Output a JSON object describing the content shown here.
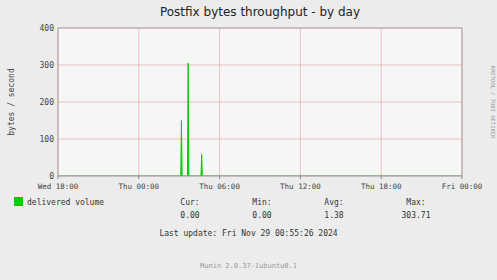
{
  "chart_data": {
    "type": "area",
    "title": "Postfix bytes throughput - by day",
    "ylabel": "bytes / second",
    "ylim": [
      0,
      400
    ],
    "yticks": [
      0,
      100,
      200,
      300,
      400
    ],
    "xlim": [
      0,
      599
    ],
    "xticks": [
      {
        "value": 0,
        "label": "Wed 18:00"
      },
      {
        "value": 119.8,
        "label": "Thu 00:00"
      },
      {
        "value": 239.6,
        "label": "Thu 06:00"
      },
      {
        "value": 359.4,
        "label": "Thu 12:00"
      },
      {
        "value": 479.2,
        "label": "Thu 18:00"
      },
      {
        "value": 599,
        "label": "Fri 00:00"
      }
    ],
    "grid": true,
    "x": [
      0,
      1,
      2,
      3,
      4,
      5,
      6,
      7,
      8,
      9,
      10,
      11,
      12,
      13,
      14,
      15,
      16,
      17,
      18,
      19,
      20,
      21,
      22,
      23,
      24,
      25,
      26,
      27,
      28,
      29,
      30,
      31,
      32,
      33,
      34,
      35,
      36,
      37,
      38,
      39,
      40,
      41,
      42,
      43,
      44,
      45,
      46,
      47,
      48,
      49,
      50,
      51,
      52,
      53,
      54,
      55,
      56,
      57,
      58,
      59,
      60,
      61,
      62,
      63,
      64,
      65,
      66,
      67,
      68,
      69,
      70,
      71,
      72,
      73,
      74,
      75,
      76,
      77,
      78,
      79,
      80,
      81,
      82,
      83,
      84,
      85,
      86,
      87,
      88,
      89,
      90,
      91,
      92,
      93,
      94,
      95,
      96,
      97,
      98,
      99,
      100,
      101,
      102,
      103,
      104,
      105,
      106,
      107,
      108,
      109,
      110,
      111,
      112,
      113,
      114,
      115,
      116,
      117,
      118,
      119,
      120,
      121,
      122,
      123,
      124,
      125,
      126,
      127,
      128,
      129,
      130,
      131,
      132,
      133,
      134,
      135,
      136,
      137,
      138,
      139,
      140,
      141,
      142,
      143,
      144,
      145,
      146,
      147,
      148,
      149,
      150,
      151,
      152,
      153,
      154,
      155,
      156,
      157,
      158,
      159,
      160,
      161,
      162,
      163,
      164,
      165,
      166,
      167,
      168,
      169,
      170,
      171,
      172,
      173,
      174,
      175,
      176,
      177,
      178,
      179,
      180,
      181,
      182,
      183,
      184,
      185,
      186,
      187,
      188,
      189,
      190,
      191,
      192,
      193,
      194,
      195,
      196,
      197,
      198,
      199,
      200,
      201,
      202,
      203,
      204,
      205,
      206,
      207,
      208,
      209,
      210,
      211,
      212,
      213,
      214,
      215,
      216,
      217,
      218,
      219,
      220,
      221,
      222,
      223,
      224,
      225,
      226,
      227,
      228,
      229,
      230,
      231,
      232,
      233,
      234,
      235,
      236,
      237,
      238,
      239,
      240,
      241,
      242,
      243,
      244,
      245,
      246,
      247,
      248,
      249,
      250,
      251,
      252,
      253,
      254,
      255,
      256,
      257,
      258,
      259,
      260,
      261,
      262,
      263,
      264,
      265,
      266,
      267,
      268,
      269,
      270,
      271,
      272,
      273,
      274,
      275,
      276,
      277,
      278,
      279,
      280,
      281,
      282,
      283,
      284,
      285,
      286,
      287,
      288,
      289,
      290,
      291,
      292,
      293,
      294,
      295,
      296,
      297,
      298,
      299,
      300,
      301,
      302,
      303,
      304,
      305,
      306,
      307,
      308,
      309,
      310,
      311,
      312,
      313,
      314,
      315,
      316,
      317,
      318,
      319,
      320,
      321,
      322,
      323,
      324,
      325,
      326,
      327,
      328,
      329,
      330,
      331,
      332,
      333,
      334,
      335,
      336,
      337,
      338,
      339,
      340,
      341,
      342,
      343,
      344,
      345,
      346,
      347,
      348,
      349,
      350,
      351,
      352,
      353,
      354,
      355,
      356,
      357,
      358,
      359,
      360,
      361,
      362,
      363,
      364,
      365,
      366,
      367,
      368,
      369,
      370,
      371,
      372,
      373,
      374,
      375,
      376,
      377,
      378,
      379,
      380,
      381,
      382,
      383,
      384,
      385,
      386,
      387,
      388,
      389,
      390,
      391,
      392,
      393,
      394,
      395,
      396,
      397,
      398,
      399,
      400,
      401,
      402,
      403,
      404,
      405,
      406,
      407,
      408,
      409,
      410,
      411,
      412,
      413,
      414,
      415,
      416,
      417,
      418,
      419,
      420,
      421,
      422,
      423,
      424,
      425,
      426,
      427,
      428,
      429,
      430,
      431,
      432,
      433,
      434,
      435,
      436,
      437,
      438,
      439,
      440,
      441,
      442,
      443,
      444,
      445,
      446,
      447,
      448,
      449,
      450,
      451,
      452,
      453,
      454,
      455,
      456,
      457,
      458,
      459,
      460,
      461,
      462,
      463,
      464,
      465,
      466,
      467,
      468,
      469,
      470,
      471,
      472,
      473,
      474,
      475,
      476,
      477,
      478,
      479,
      480,
      481,
      482,
      483,
      484,
      485,
      486,
      487,
      488,
      489,
      490,
      491,
      492,
      493,
      494,
      495,
      496,
      497,
      498,
      499,
      500,
      501,
      502,
      503,
      504,
      505,
      506,
      507,
      508,
      509,
      510,
      511,
      512,
      513,
      514,
      515,
      516,
      517,
      518,
      519,
      520,
      521,
      522,
      523,
      524,
      525,
      526,
      527,
      528,
      529,
      530,
      531,
      532,
      533,
      534,
      535,
      536,
      537,
      538,
      539,
      540,
      541,
      542,
      543,
      544,
      545,
      546,
      547,
      548,
      549,
      550,
      551,
      552,
      553,
      554,
      555,
      556,
      557,
      558,
      559,
      560,
      561,
      562,
      563,
      564,
      565,
      566,
      567,
      568,
      569,
      570,
      571,
      572,
      573,
      574,
      575,
      576,
      577,
      578,
      579,
      580,
      581,
      582,
      583,
      584,
      585,
      586,
      587,
      588,
      589,
      590,
      591,
      592,
      593,
      594,
      595,
      596,
      597,
      598,
      599
    ],
    "series": [
      {
        "name": "delivered volume",
        "color": "#00cc00",
        "values": [
          0,
          0,
          0,
          0,
          0,
          0,
          0,
          0,
          0,
          0,
          0,
          0,
          0,
          0,
          0,
          0,
          0,
          0,
          0,
          0,
          0,
          0,
          0,
          0,
          0,
          0,
          0,
          0,
          0,
          0,
          0,
          0,
          0,
          0,
          0,
          0,
          0,
          0,
          0,
          0,
          0,
          0,
          0,
          0,
          0,
          0,
          0,
          0,
          0,
          0,
          0,
          0,
          0,
          0,
          0,
          0,
          0,
          0,
          0,
          0,
          0,
          0,
          0,
          0,
          0,
          0,
          0,
          0,
          0,
          0,
          0,
          0,
          0,
          0,
          0,
          0,
          0,
          0,
          0,
          0,
          0,
          0,
          0,
          0,
          0,
          0,
          0,
          0,
          0,
          0,
          0,
          0,
          0,
          0,
          0,
          0,
          0,
          0,
          0,
          0,
          0,
          0,
          0,
          0,
          0,
          0,
          0,
          0,
          0,
          0,
          0,
          0,
          0,
          0,
          0,
          0,
          0,
          0,
          0,
          0,
          0,
          0,
          0,
          0,
          0,
          0,
          0,
          0,
          0,
          0,
          0,
          0,
          0,
          0,
          0,
          0,
          0,
          0,
          0,
          0,
          0,
          0,
          0,
          0,
          0,
          0,
          0,
          0,
          0,
          0,
          0,
          0,
          0,
          0,
          0,
          0,
          0,
          0,
          0,
          0,
          0,
          0,
          0,
          0,
          0,
          0,
          0,
          0,
          0,
          0,
          0,
          0,
          0,
          0,
          0,
          0,
          0,
          0,
          0,
          0,
          0,
          0,
          0,
          150,
          0,
          0,
          0,
          0,
          0,
          0,
          0,
          0,
          0,
          305,
          0,
          0,
          0,
          0,
          0,
          0,
          0,
          0,
          0,
          0,
          0,
          0,
          0,
          0,
          0,
          0,
          0,
          0,
          0,
          58,
          0,
          0,
          0,
          0,
          0,
          0,
          0,
          0,
          0,
          0,
          0,
          0,
          0,
          0,
          0,
          0,
          0,
          0,
          0,
          0,
          0,
          0,
          0,
          0,
          0,
          0,
          0,
          0,
          0,
          0,
          0,
          0,
          0,
          0,
          0,
          0,
          0,
          0,
          0,
          0,
          0,
          0,
          0,
          0,
          0,
          0,
          0,
          0,
          0,
          0,
          0,
          0,
          0,
          0,
          0,
          0,
          0,
          0,
          0,
          0,
          0,
          0,
          0,
          0,
          0,
          0,
          0,
          0,
          0,
          0,
          0,
          0,
          0,
          0,
          0,
          0,
          0,
          0,
          0,
          0,
          0,
          0,
          0,
          0,
          0,
          0,
          0,
          0,
          0,
          0,
          0,
          0,
          0,
          0,
          0,
          0,
          0,
          0,
          0,
          0,
          0,
          0,
          0,
          0,
          0,
          0,
          0,
          0,
          0,
          0,
          0,
          0,
          0,
          0,
          0,
          0,
          0,
          0,
          0,
          0,
          0,
          0,
          0,
          0,
          0,
          0,
          0,
          0,
          0,
          0,
          0,
          0,
          0,
          0,
          0,
          0,
          0,
          0,
          0,
          0,
          0,
          0,
          0,
          0,
          0,
          0,
          0,
          0,
          0,
          0,
          0,
          0,
          0,
          0,
          0,
          0,
          0,
          0,
          0,
          0,
          0,
          0,
          0,
          0,
          0,
          0,
          0,
          0,
          0,
          0,
          0,
          0,
          0,
          0,
          0,
          0,
          0,
          0,
          0,
          0,
          0,
          0,
          0,
          0,
          0,
          0,
          0,
          0,
          0,
          0,
          0,
          0,
          0,
          0,
          0,
          0,
          0,
          0,
          0,
          0,
          0,
          0,
          0,
          0,
          0,
          0,
          0,
          0,
          0,
          0,
          0,
          0,
          0,
          0,
          0,
          0,
          0,
          0,
          0,
          0,
          0,
          0,
          0,
          0,
          0,
          0,
          0,
          0,
          0,
          0,
          0,
          0,
          0,
          0,
          0,
          0,
          0,
          0,
          0,
          0,
          0,
          0,
          0,
          0,
          0,
          0,
          0,
          0,
          0,
          0,
          0,
          0,
          0,
          0,
          0,
          0,
          0,
          0,
          0,
          0,
          0,
          0,
          0,
          0,
          0,
          0,
          0,
          0,
          0,
          0,
          0,
          0,
          0,
          0,
          0,
          0,
          0,
          0,
          0,
          0,
          0,
          0,
          0,
          0,
          0,
          0,
          0,
          0,
          0,
          0,
          0,
          0,
          0,
          0,
          0,
          0,
          0,
          0,
          0,
          0,
          0,
          0,
          0,
          0,
          0,
          0,
          0,
          0,
          0,
          0,
          0,
          0,
          0,
          0,
          0,
          0,
          0,
          0,
          0,
          0,
          0,
          0,
          0,
          0,
          0,
          0,
          0,
          0,
          0,
          0,
          0,
          0,
          0,
          0,
          0,
          0,
          0,
          0,
          0,
          0,
          0,
          0,
          0,
          0,
          0,
          0,
          0,
          0,
          0,
          0,
          0,
          0,
          0,
          0,
          0,
          0,
          0,
          0,
          0,
          0,
          0,
          0,
          0,
          0,
          0,
          0,
          0,
          0,
          0,
          0,
          0,
          0,
          0,
          0,
          0,
          0,
          0,
          0,
          0,
          0,
          0,
          0,
          0,
          0,
          0,
          0
        ]
      }
    ],
    "stats": {
      "labels": [
        "Cur:",
        "Min:",
        "Avg:",
        "Max:"
      ],
      "values": [
        "0.00",
        "0.00",
        "1.38",
        "303.71"
      ]
    },
    "annotations": [
      "Last update: Fri Nov 29 00:55:26 2024",
      "Munin 2.0.37-1ubuntu0.1",
      "RRDTOOL / TOBI OETIKER"
    ]
  }
}
